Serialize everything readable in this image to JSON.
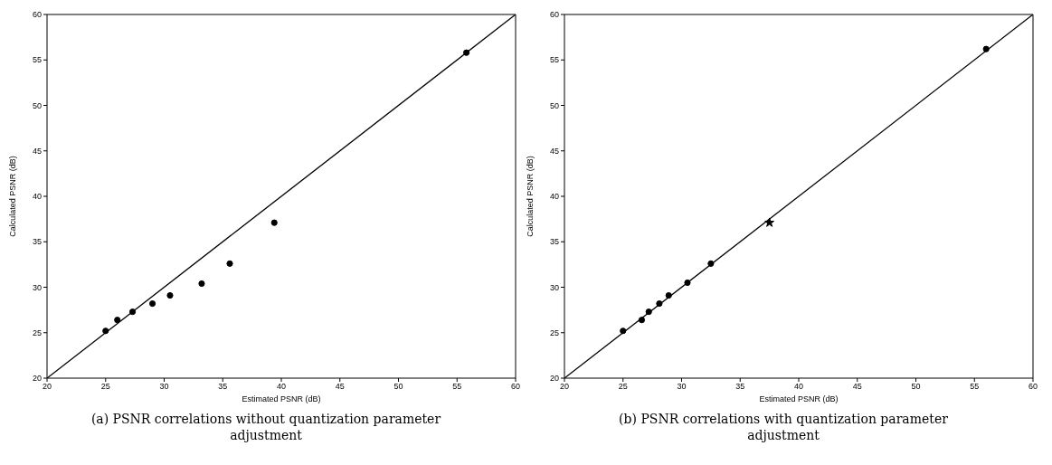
{
  "chart_data": [
    {
      "type": "scatter",
      "xlabel": "Estimated PSNR (dB)",
      "ylabel": "Calculated PSNR (dB)",
      "xlim": [
        20,
        60
      ],
      "ylim": [
        20,
        60
      ],
      "xticks": [
        20,
        25,
        30,
        35,
        40,
        45,
        50,
        55,
        60
      ],
      "yticks": [
        20,
        25,
        30,
        35,
        40,
        45,
        50,
        55,
        60
      ],
      "annotations": [
        "(a) PSNR correlations without quantization parameter adjustment"
      ],
      "series": [
        {
          "color": "#000000",
          "marker": "circle",
          "x": [
            25,
            26,
            27.3,
            29,
            30.5,
            33.2,
            35.6,
            39.4,
            55.8
          ],
          "values": [
            25.2,
            26.4,
            27.3,
            28.2,
            29.1,
            30.4,
            32.6,
            37.1,
            55.8
          ]
        },
        {
          "type": "line",
          "color": "#000000",
          "marker": "none",
          "line_style": "solid",
          "x": [
            20,
            60
          ],
          "values": [
            20,
            60
          ]
        }
      ]
    },
    {
      "type": "scatter",
      "xlabel": "Estimated PSNR (dB)",
      "ylabel": "Calculated PSNR (dB)",
      "xlim": [
        20,
        60
      ],
      "ylim": [
        20,
        60
      ],
      "xticks": [
        20,
        25,
        30,
        35,
        40,
        45,
        50,
        55,
        60
      ],
      "yticks": [
        20,
        25,
        30,
        35,
        40,
        45,
        50,
        55,
        60
      ],
      "annotations": [
        "(b) PSNR correlations with quantization parameter adjustment"
      ],
      "series": [
        {
          "color": "#000000",
          "marker": "circle",
          "x": [
            25,
            26.6,
            27.2,
            28.1,
            28.9,
            30.5,
            32.5,
            56
          ],
          "values": [
            25.2,
            26.4,
            27.3,
            28.2,
            29.1,
            30.5,
            32.6,
            56.2
          ]
        },
        {
          "type": "scatter",
          "color": "#000000",
          "marker": "star",
          "x": [
            37.5
          ],
          "values": [
            37.1
          ]
        },
        {
          "type": "line",
          "color": "#000000",
          "marker": "none",
          "line_style": "solid",
          "x": [
            20,
            60
          ],
          "values": [
            20,
            60
          ]
        }
      ]
    }
  ]
}
